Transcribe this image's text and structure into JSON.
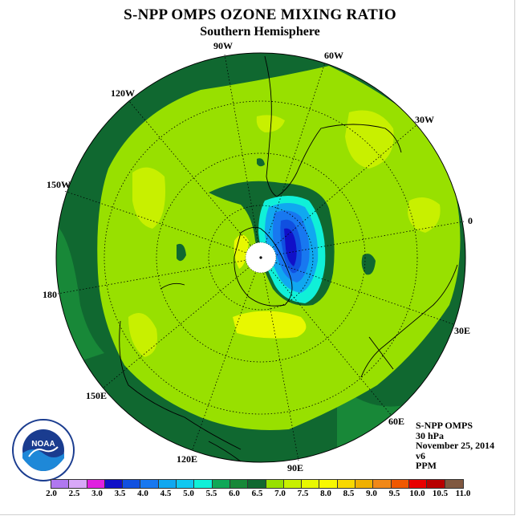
{
  "title": "S-NPP OMPS OZONE MIXING RATIO",
  "subtitle": "Southern Hemisphere",
  "longitude_labels": {
    "lon_90w": "90W",
    "lon_60w": "60W",
    "lon_120w": "120W",
    "lon_30w": "30W",
    "lon_150w": "150W",
    "lon_0": "0",
    "lon_180": "180",
    "lon_30e": "30E",
    "lon_150e": "150E",
    "lon_60e": "60E",
    "lon_120e": "120E",
    "lon_90e": "90E"
  },
  "info": {
    "instrument": "S-NPP OMPS",
    "level": "30 hPa",
    "date": "November 25, 2014",
    "version": "v6",
    "units": "PPM"
  },
  "logo_text": "NOAA",
  "colorbar": {
    "colors": [
      "#b078f0",
      "#d8a8f8",
      "#e020e0",
      "#1010c8",
      "#1050e0",
      "#1878f0",
      "#10a8f0",
      "#10c8f0",
      "#10f0d8",
      "#10a858",
      "#188838",
      "#106830",
      "#98e000",
      "#c8f000",
      "#e8f800",
      "#f8f800",
      "#f8d800",
      "#f0b000",
      "#f08818",
      "#f05800",
      "#e80000",
      "#b80000",
      "#805840"
    ],
    "ticks": [
      "2.0",
      "2.5",
      "3.0",
      "3.5",
      "4.0",
      "4.5",
      "5.0",
      "5.5",
      "6.0",
      "6.5",
      "7.0",
      "7.5",
      "8.0",
      "8.5",
      "9.0",
      "9.5",
      "10.0",
      "10.5",
      "11.0"
    ]
  }
}
